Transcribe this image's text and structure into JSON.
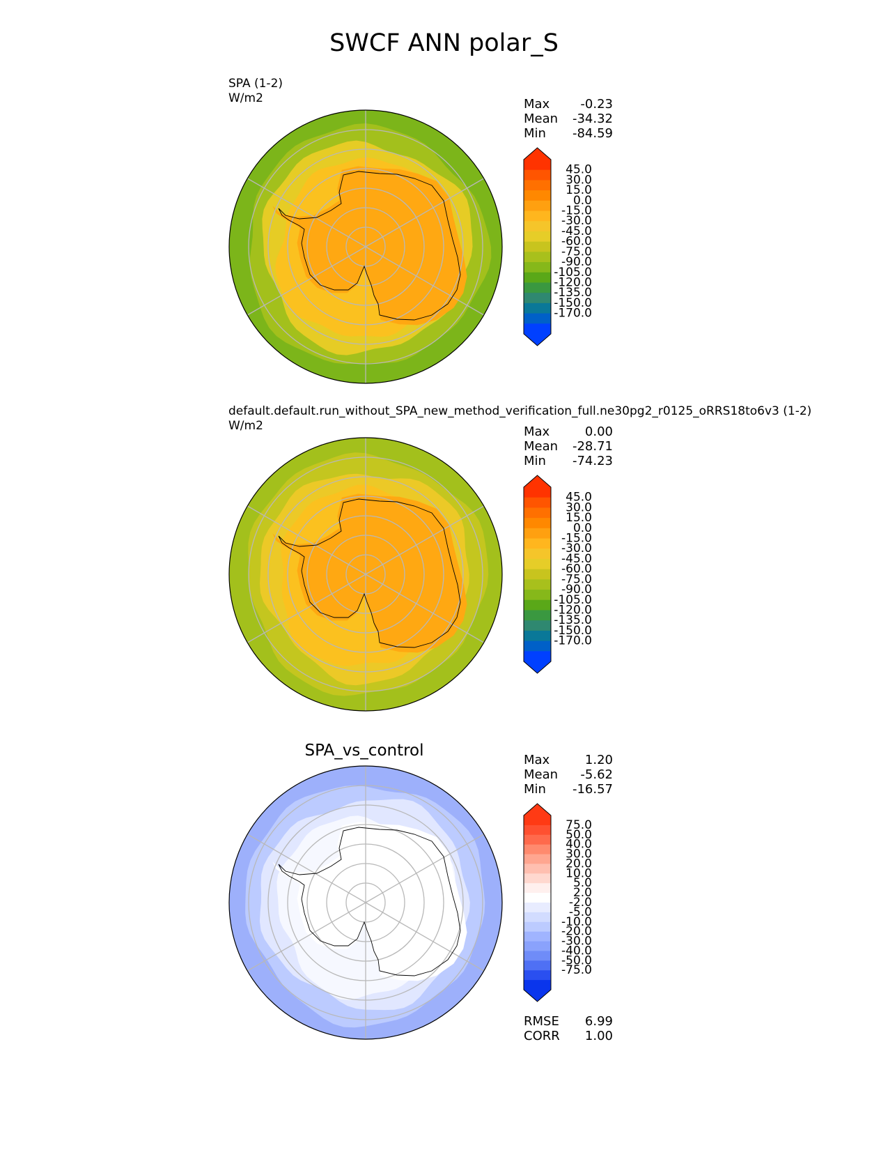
{
  "title": "SWCF ANN polar_S",
  "panels": [
    {
      "label_line1": "SPA (1-2)",
      "label_line2": "W/m2",
      "subtitle": "",
      "stats": [
        {
          "label": "Max",
          "value": "-0.23"
        },
        {
          "label": "Mean",
          "value": "-34.32"
        },
        {
          "label": "Min",
          "value": "-84.59"
        }
      ],
      "extra_stats": [],
      "colorbar": {
        "ticks": [
          "45.0",
          "30.0",
          "15.0",
          "0.0",
          "-15.0",
          "-30.0",
          "-45.0",
          "-60.0",
          "-75.0",
          "-90.0",
          "-105.0",
          "-120.0",
          "-135.0",
          "-150.0",
          "-170.0"
        ],
        "colors": [
          "#ff3300",
          "#ff5500",
          "#ff7000",
          "#ff8800",
          "#ffa010",
          "#ffb61e",
          "#f5c52a",
          "#e6cd28",
          "#c8c41e",
          "#a8c01c",
          "#86b81a",
          "#5aa818",
          "#3a9840",
          "#2f8870",
          "#0a7898",
          "#0060c8",
          "#0040ff"
        ],
        "over_color": "#ff3300",
        "under_color": "#0040ff"
      },
      "map_colors": {
        "outer": "#7cb51a",
        "ring2": "#a3c01c",
        "ring3": "#e6cc25",
        "ring4": "#fbc11f",
        "land": "#ffa812"
      }
    },
    {
      "label_line1": "default.default.run_without_SPA_new_method_verification_full.ne30pg2_r0125_oRRS18to6v3 (1-2)",
      "label_line2": "W/m2",
      "subtitle": "",
      "stats": [
        {
          "label": "Max",
          "value": "0.00"
        },
        {
          "label": "Mean",
          "value": "-28.71"
        },
        {
          "label": "Min",
          "value": "-74.23"
        }
      ],
      "extra_stats": [],
      "colorbar": {
        "ticks": [
          "45.0",
          "30.0",
          "15.0",
          "0.0",
          "-15.0",
          "-30.0",
          "-45.0",
          "-60.0",
          "-75.0",
          "-90.0",
          "-105.0",
          "-120.0",
          "-135.0",
          "-150.0",
          "-170.0"
        ],
        "colors": [
          "#ff3300",
          "#ff5500",
          "#ff7000",
          "#ff8800",
          "#ffa010",
          "#ffb61e",
          "#f5c52a",
          "#e6cd28",
          "#c8c41e",
          "#a8c01c",
          "#86b81a",
          "#5aa818",
          "#3a9840",
          "#2f8870",
          "#0a7898",
          "#0060c8",
          "#0040ff"
        ],
        "over_color": "#ff3300",
        "under_color": "#0040ff"
      },
      "map_colors": {
        "outer": "#a3c01c",
        "ring2": "#c4c61f",
        "ring3": "#ecc927",
        "ring4": "#fbc11f",
        "land": "#ffa812"
      }
    },
    {
      "label_line1": "",
      "label_line2": "",
      "subtitle": "SPA_vs_control",
      "stats": [
        {
          "label": "Max",
          "value": "1.20"
        },
        {
          "label": "Mean",
          "value": "-5.62"
        },
        {
          "label": "Min",
          "value": "-16.57"
        }
      ],
      "extra_stats": [
        {
          "label": "RMSE",
          "value": "6.99"
        },
        {
          "label": "CORR",
          "value": "1.00"
        }
      ],
      "colorbar": {
        "ticks": [
          "75.0",
          "50.0",
          "40.0",
          "30.0",
          "20.0",
          "10.0",
          "5.0",
          "2.0",
          "-2.0",
          "-5.0",
          "-10.0",
          "-20.0",
          "-30.0",
          "-40.0",
          "-50.0",
          "-75.0"
        ],
        "colors": [
          "#ff3a14",
          "#ff5030",
          "#ff6a4c",
          "#ff8a6e",
          "#ffa690",
          "#ffbfb0",
          "#ffd8cf",
          "#fff0ee",
          "#ffffff",
          "#e8ecff",
          "#d2dcff",
          "#bccbff",
          "#a0b4ff",
          "#8aa2fc",
          "#6f8cf8",
          "#4f70f4",
          "#2a4ff0",
          "#0a35ec"
        ],
        "over_color": "#ff3a14",
        "under_color": "#0a35ec"
      },
      "map_colors": {
        "outer": "#9db0fb",
        "ring2": "#bccbff",
        "ring3": "#e1e7ff",
        "ring4": "#f6f8ff",
        "land": "#ffffff"
      }
    }
  ],
  "chart_data": [
    {
      "type": "heatmap",
      "title": "SPA (1-2)",
      "units": "W/m2",
      "projection": "south polar stereographic",
      "levels": [
        -170,
        -150,
        -135,
        -120,
        -105,
        -90,
        -75,
        -60,
        -45,
        -30,
        -15,
        0,
        15,
        30,
        45
      ],
      "stats": {
        "max": -0.23,
        "mean": -34.32,
        "min": -84.59
      }
    },
    {
      "type": "heatmap",
      "title": "default.default.run_without_SPA_new_method_verification_full.ne30pg2_r0125_oRRS18to6v3 (1-2)",
      "units": "W/m2",
      "projection": "south polar stereographic",
      "levels": [
        -170,
        -150,
        -135,
        -120,
        -105,
        -90,
        -75,
        -60,
        -45,
        -30,
        -15,
        0,
        15,
        30,
        45
      ],
      "stats": {
        "max": 0.0,
        "mean": -28.71,
        "min": -74.23
      }
    },
    {
      "type": "heatmap",
      "title": "SPA_vs_control",
      "projection": "south polar stereographic",
      "levels": [
        -75,
        -50,
        -40,
        -30,
        -20,
        -10,
        -5,
        -2,
        2,
        5,
        10,
        20,
        30,
        40,
        50,
        75
      ],
      "stats": {
        "max": 1.2,
        "mean": -5.62,
        "min": -16.57,
        "rmse": 6.99,
        "corr": 1.0
      }
    }
  ]
}
